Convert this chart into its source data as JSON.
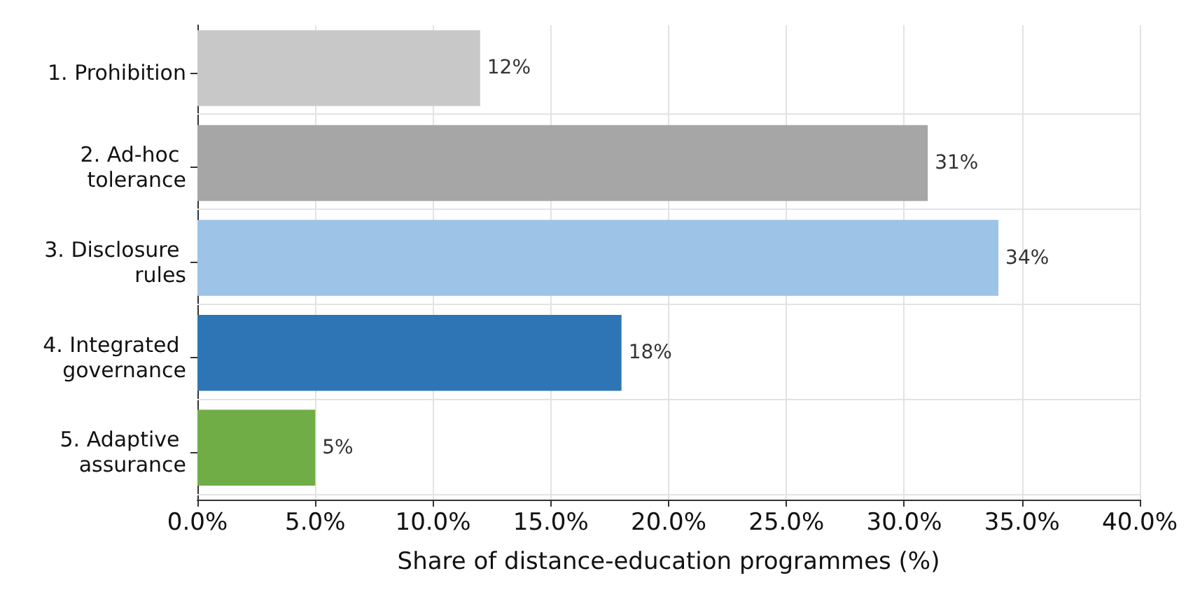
{
  "chart_data": {
    "type": "bar",
    "orientation": "horizontal",
    "xlabel": "Share of distance-education programmes (%)",
    "categories": [
      "1. Prohibition",
      "2. Ad-hoc tolerance",
      "3. Disclosure rules",
      "4. Integrated governance",
      "5. Adaptive assurance"
    ],
    "values": [
      12,
      31,
      34,
      18,
      5
    ],
    "colors": [
      "#c8c8c8",
      "#a6a6a6",
      "#9dc3e6",
      "#2e75b6",
      "#70ad47"
    ],
    "value_labels": [
      "12%",
      "31%",
      "34%",
      "18%",
      "5%"
    ],
    "xlim": [
      0,
      40
    ],
    "xticks": [
      {
        "value": 0,
        "label": "0.0%"
      },
      {
        "value": 5,
        "label": "5.0%"
      },
      {
        "value": 10,
        "label": "10.0%"
      },
      {
        "value": 15,
        "label": "15.0%"
      },
      {
        "value": 20,
        "label": "20.0%"
      },
      {
        "value": 25,
        "label": "25.0%"
      },
      {
        "value": 30,
        "label": "30.0%"
      },
      {
        "value": 35,
        "label": "35.0%"
      },
      {
        "value": 40,
        "label": "40.0%"
      }
    ],
    "grid": true
  }
}
